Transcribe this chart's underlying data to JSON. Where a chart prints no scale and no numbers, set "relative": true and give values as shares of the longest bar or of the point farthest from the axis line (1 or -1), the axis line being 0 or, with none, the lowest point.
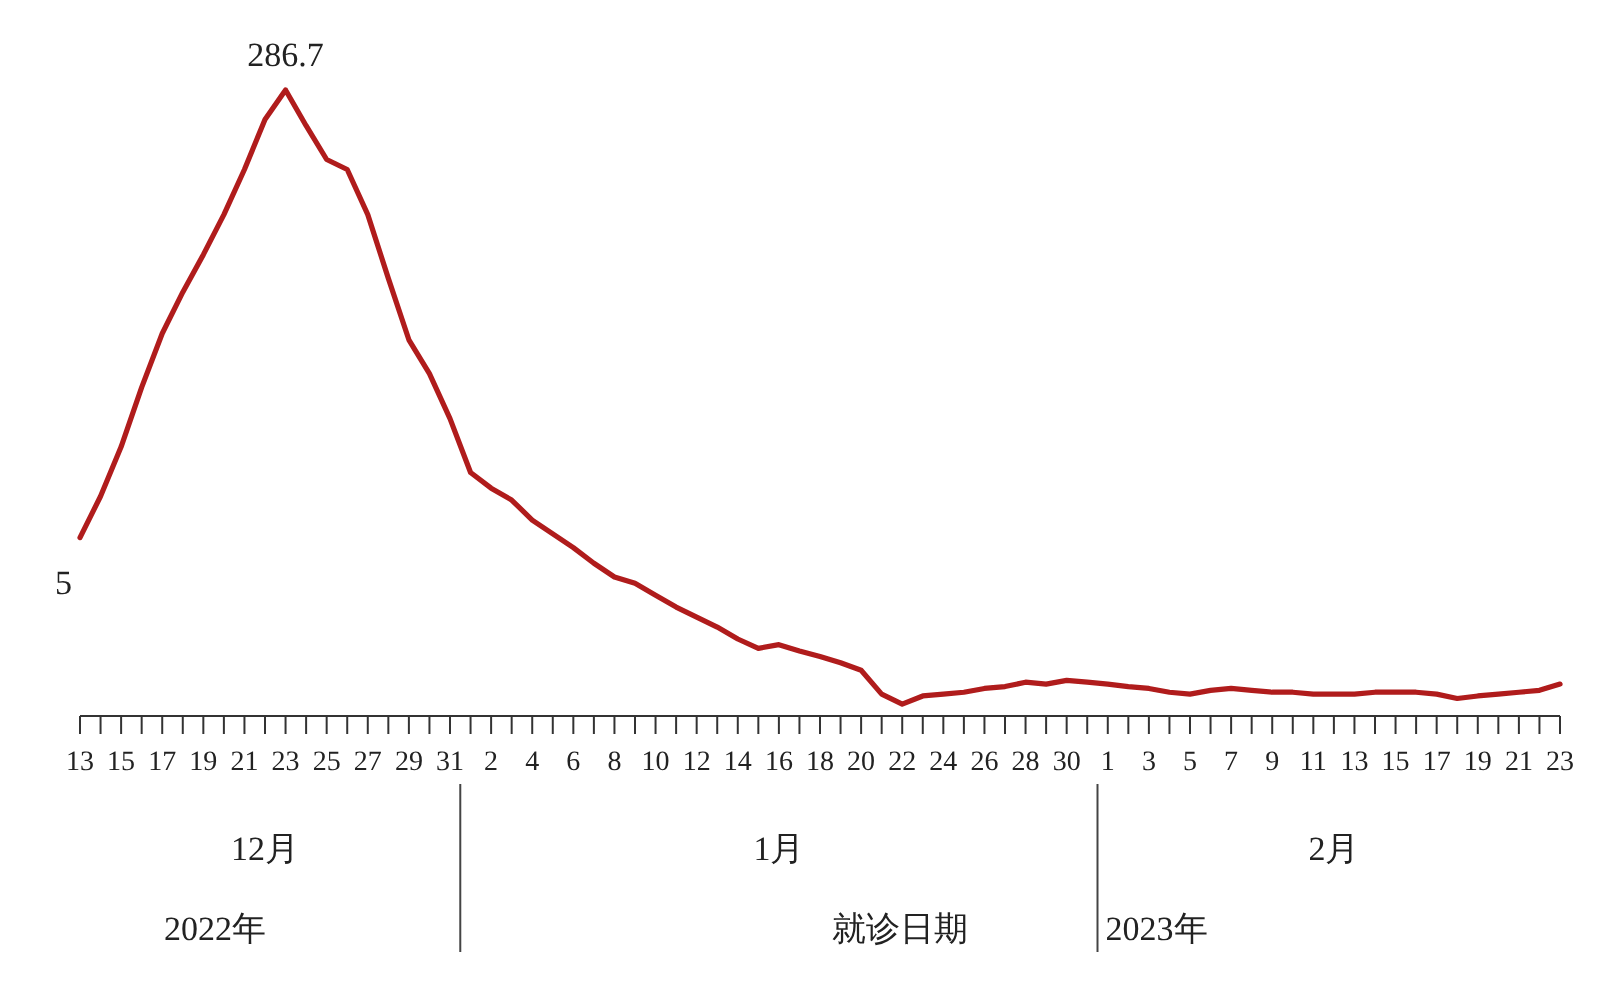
{
  "chart_data": {
    "type": "line",
    "relative": true,
    "xlabel": "就诊日期",
    "marker": "none",
    "line_style": "solid",
    "x": [
      "2022-12-13",
      "2022-12-14",
      "2022-12-15",
      "2022-12-16",
      "2022-12-17",
      "2022-12-18",
      "2022-12-19",
      "2022-12-20",
      "2022-12-21",
      "2022-12-22",
      "2022-12-23",
      "2022-12-24",
      "2022-12-25",
      "2022-12-26",
      "2022-12-27",
      "2022-12-28",
      "2022-12-29",
      "2022-12-30",
      "2022-12-31",
      "2023-01-01",
      "2023-01-02",
      "2023-01-03",
      "2023-01-04",
      "2023-01-05",
      "2023-01-06",
      "2023-01-07",
      "2023-01-08",
      "2023-01-09",
      "2023-01-10",
      "2023-01-11",
      "2023-01-12",
      "2023-01-13",
      "2023-01-14",
      "2023-01-15",
      "2023-01-16",
      "2023-01-17",
      "2023-01-18",
      "2023-01-19",
      "2023-01-20",
      "2023-01-21",
      "2023-01-22",
      "2023-01-23",
      "2023-01-24",
      "2023-01-25",
      "2023-01-26",
      "2023-01-27",
      "2023-01-28",
      "2023-01-29",
      "2023-01-30",
      "2023-01-31",
      "2023-02-01",
      "2023-02-02",
      "2023-02-03",
      "2023-02-04",
      "2023-02-05",
      "2023-02-06",
      "2023-02-07",
      "2023-02-08",
      "2023-02-09",
      "2023-02-10",
      "2023-02-11",
      "2023-02-12",
      "2023-02-13",
      "2023-02-14",
      "2023-02-15",
      "2023-02-16",
      "2023-02-17",
      "2023-02-18",
      "2023-02-19",
      "2023-02-20",
      "2023-02-21",
      "2023-02-22",
      "2023-02-23"
    ],
    "series": [
      {
        "color": "#b01c1c",
        "values": [
          0.285,
          0.351,
          0.43,
          0.525,
          0.611,
          0.677,
          0.737,
          0.801,
          0.873,
          0.953,
          1,
          0.943,
          0.889,
          0.873,
          0.801,
          0.699,
          0.601,
          0.547,
          0.475,
          0.389,
          0.364,
          0.345,
          0.313,
          0.291,
          0.269,
          0.244,
          0.222,
          0.212,
          0.193,
          0.174,
          0.158,
          0.142,
          0.123,
          0.108,
          0.114,
          0.104,
          0.095,
          0.085,
          0.073,
          0.035,
          0.019,
          0.032,
          0.035,
          0.038,
          0.044,
          0.047,
          0.054,
          0.051,
          0.057,
          0.054,
          0.051,
          0.047,
          0.044,
          0.038,
          0.035,
          0.041,
          0.044,
          0.041,
          0.038,
          0.038,
          0.035,
          0.035,
          0.035,
          0.038,
          0.038,
          0.038,
          0.035,
          0.028,
          0.032,
          0.035,
          0.038,
          0.041,
          0.051
        ]
      }
    ],
    "xlim": [
      "2022-12-13",
      "2023-02-23"
    ],
    "xticks": [
      {
        "value": "2022-12-13",
        "label": "13"
      },
      {
        "value": "2022-12-14",
        "label": null
      },
      {
        "value": "2022-12-15",
        "label": "15"
      },
      {
        "value": "2022-12-16",
        "label": null
      },
      {
        "value": "2022-12-17",
        "label": "17"
      },
      {
        "value": "2022-12-18",
        "label": null
      },
      {
        "value": "2022-12-19",
        "label": "19"
      },
      {
        "value": "2022-12-20",
        "label": null
      },
      {
        "value": "2022-12-21",
        "label": "21"
      },
      {
        "value": "2022-12-22",
        "label": null
      },
      {
        "value": "2022-12-23",
        "label": "23"
      },
      {
        "value": "2022-12-24",
        "label": null
      },
      {
        "value": "2022-12-25",
        "label": "25"
      },
      {
        "value": "2022-12-26",
        "label": null
      },
      {
        "value": "2022-12-27",
        "label": "27"
      },
      {
        "value": "2022-12-28",
        "label": null
      },
      {
        "value": "2022-12-29",
        "label": "29"
      },
      {
        "value": "2022-12-30",
        "label": null
      },
      {
        "value": "2022-12-31",
        "label": "31"
      },
      {
        "value": "2023-01-01",
        "label": null
      },
      {
        "value": "2023-01-02",
        "label": "2"
      },
      {
        "value": "2023-01-03",
        "label": null
      },
      {
        "value": "2023-01-04",
        "label": "4"
      },
      {
        "value": "2023-01-05",
        "label": null
      },
      {
        "value": "2023-01-06",
        "label": "6"
      },
      {
        "value": "2023-01-07",
        "label": null
      },
      {
        "value": "2023-01-08",
        "label": "8"
      },
      {
        "value": "2023-01-09",
        "label": null
      },
      {
        "value": "2023-01-10",
        "label": "10"
      },
      {
        "value": "2023-01-11",
        "label": null
      },
      {
        "value": "2023-01-12",
        "label": "12"
      },
      {
        "value": "2023-01-13",
        "label": null
      },
      {
        "value": "2023-01-14",
        "label": "14"
      },
      {
        "value": "2023-01-15",
        "label": null
      },
      {
        "value": "2023-01-16",
        "label": "16"
      },
      {
        "value": "2023-01-17",
        "label": null
      },
      {
        "value": "2023-01-18",
        "label": "18"
      },
      {
        "value": "2023-01-19",
        "label": null
      },
      {
        "value": "2023-01-20",
        "label": "20"
      },
      {
        "value": "2023-01-21",
        "label": null
      },
      {
        "value": "2023-01-22",
        "label": "22"
      },
      {
        "value": "2023-01-23",
        "label": null
      },
      {
        "value": "2023-01-24",
        "label": "24"
      },
      {
        "value": "2023-01-25",
        "label": null
      },
      {
        "value": "2023-01-26",
        "label": "26"
      },
      {
        "value": "2023-01-27",
        "label": null
      },
      {
        "value": "2023-01-28",
        "label": "28"
      },
      {
        "value": "2023-01-29",
        "label": null
      },
      {
        "value": "2023-01-30",
        "label": "30"
      },
      {
        "value": "2023-01-31",
        "label": null
      },
      {
        "value": "2023-02-01",
        "label": "1"
      },
      {
        "value": "2023-02-02",
        "label": null
      },
      {
        "value": "2023-02-03",
        "label": "3"
      },
      {
        "value": "2023-02-04",
        "label": null
      },
      {
        "value": "2023-02-05",
        "label": "5"
      },
      {
        "value": "2023-02-06",
        "label": null
      },
      {
        "value": "2023-02-07",
        "label": "7"
      },
      {
        "value": "2023-02-08",
        "label": null
      },
      {
        "value": "2023-02-09",
        "label": "9"
      },
      {
        "value": "2023-02-10",
        "label": null
      },
      {
        "value": "2023-02-11",
        "label": "11"
      },
      {
        "value": "2023-02-12",
        "label": null
      },
      {
        "value": "2023-02-13",
        "label": "13"
      },
      {
        "value": "2023-02-14",
        "label": null
      },
      {
        "value": "2023-02-15",
        "label": "15"
      },
      {
        "value": "2023-02-16",
        "label": null
      },
      {
        "value": "2023-02-17",
        "label": "17"
      },
      {
        "value": "2023-02-18",
        "label": null
      },
      {
        "value": "2023-02-19",
        "label": "19"
      },
      {
        "value": "2023-02-20",
        "label": null
      },
      {
        "value": "2023-02-21",
        "label": "21"
      },
      {
        "value": "2023-02-22",
        "label": null
      },
      {
        "value": "2023-02-23",
        "label": "23"
      }
    ],
    "annotations": [
      "12月",
      "1月",
      "2月",
      "2022年",
      "2023年",
      "286.7",
      "5"
    ],
    "grid": false
  }
}
